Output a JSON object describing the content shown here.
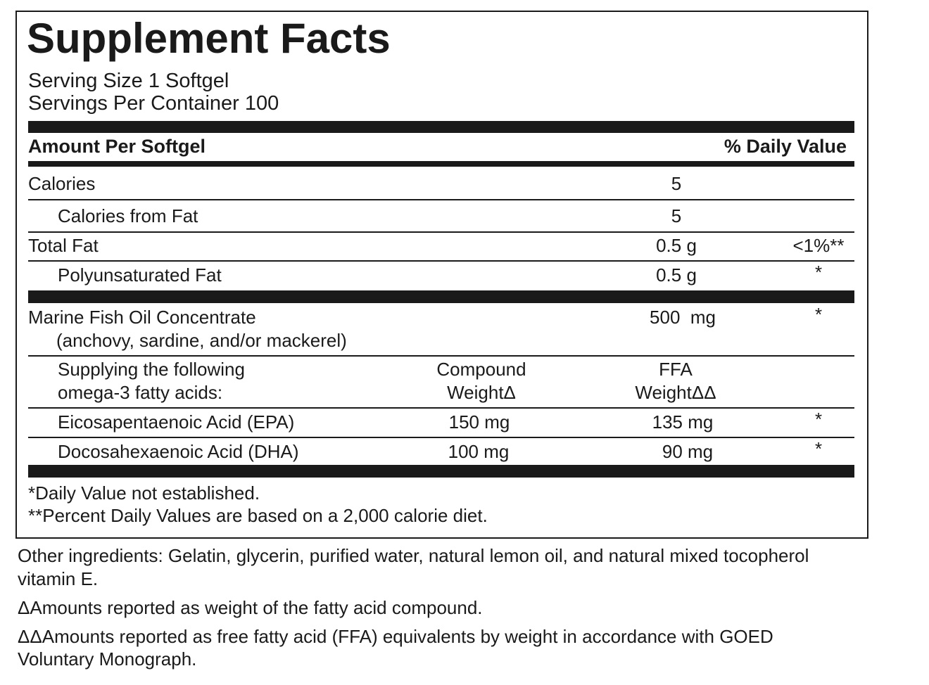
{
  "panel": {
    "title": "Supplement Facts",
    "serving_size": "Serving Size 1 Softgel",
    "servings_per_container": "Servings Per Container 100",
    "header": {
      "amount": "Amount Per Softgel",
      "daily_value": "% Daily Value"
    },
    "rows": [
      {
        "name": "Calories",
        "amount": "5"
      },
      {
        "name": "Calories from Fat",
        "amount": "5"
      },
      {
        "name": "Total Fat",
        "amount": "0.5 g",
        "daily_value": "<1%**"
      },
      {
        "name": "Polyunsaturated Fat",
        "amount": "0.5 g",
        "daily_value": "*"
      },
      {
        "name": "Marine Fish Oil Concentrate",
        "note": "(anchovy, sardine, and/or mackerel)",
        "amount": "500  mg",
        "daily_value": "*"
      },
      {
        "name": "Supplying the following",
        "name2": "omega-3 fatty acids:",
        "compound": "Compound",
        "compound2": "WeightΔ",
        "ffa": "FFA",
        "ffa2": "WeightΔΔ"
      },
      {
        "name": "Eicosapentaenoic Acid (EPA)",
        "compound": "150 mg",
        "ffa": "135 mg",
        "daily_value": "*"
      },
      {
        "name": "Docosahexaenoic Acid (DHA)",
        "compound": "100 mg",
        "ffa": "90 mg",
        "daily_value": "*"
      }
    ],
    "footnotes": [
      "*Daily Value not established.",
      "**Percent Daily Values are based on a 2,000 calorie diet."
    ]
  },
  "other_ingredients": [
    "Other ingredients: Gelatin, glycerin, purified water, natural lemon oil, and natural mixed tocopherol",
    "vitamin E."
  ],
  "notes": [
    [
      "ΔAmounts reported as weight of the fatty acid compound."
    ],
    [
      "ΔΔAmounts reported as free fatty acid (FFA) equivalents by weight in accordance with GOED",
      "Voluntary Monograph."
    ]
  ]
}
